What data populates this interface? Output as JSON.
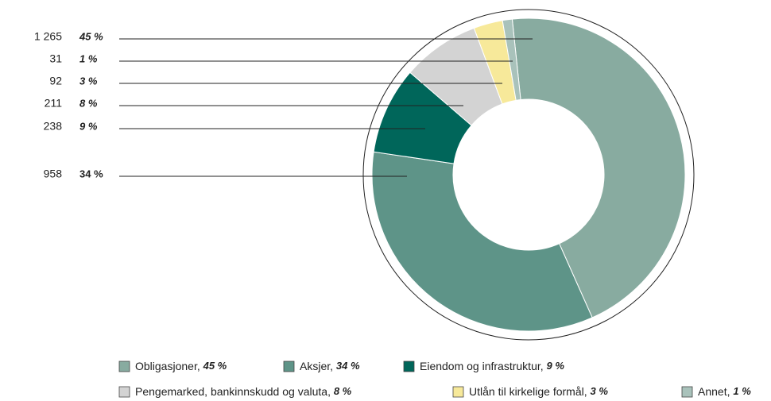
{
  "chart_data": {
    "type": "donut",
    "categories": [
      "Obligasjoner",
      "Aksjer",
      "Eiendom og infrastruktur",
      "Pengemarked, bankinnskudd og valuta",
      "Utlån til kirkelige formål",
      "Annet"
    ],
    "values": [
      45,
      34,
      9,
      8,
      3,
      1
    ],
    "value_labels": [
      "45 %",
      "34 %",
      "9 %",
      "8 %",
      "3 %",
      "1 %"
    ],
    "amounts": [
      1265,
      958,
      238,
      211,
      92,
      31
    ],
    "amount_labels": [
      "1 265",
      "958",
      "238",
      "211",
      "92",
      "31"
    ],
    "colors": [
      "#88aba0",
      "#5e9488",
      "#00665a",
      "#d3d3d3",
      "#f7e99a",
      "#a9c2bb"
    ]
  }
}
